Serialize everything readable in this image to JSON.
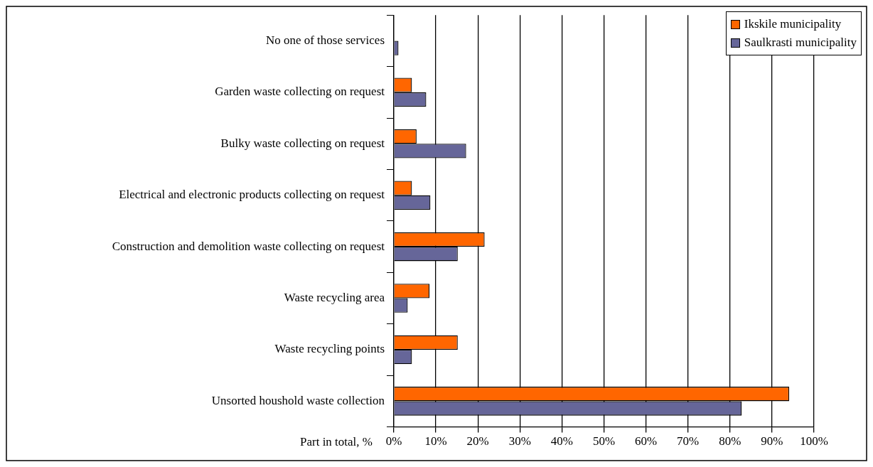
{
  "chart_data": {
    "type": "bar",
    "orientation": "horizontal",
    "xlabel": "Part in total, %",
    "categories": [
      "No one of those services",
      "Garden waste collecting on request",
      "Bulky waste collecting on request",
      "Electrical and electronic products collecting on request",
      "Construction and demolition waste collecting on request",
      "Waste recycling area",
      "Waste recycling points",
      "Unsorted houshold waste collection"
    ],
    "series": [
      {
        "name": "Ikskile municipality",
        "color": "#ff6600",
        "values": [
          null,
          4.3,
          5.4,
          4.3,
          21.6,
          8.5,
          15.2,
          94.1
        ]
      },
      {
        "name": "Saulkrasti municipality",
        "color": "#666699",
        "values": [
          1.1,
          7.7,
          17.2,
          8.7,
          15.2,
          3.3,
          4.3,
          82.8
        ]
      }
    ],
    "xlim": [
      0,
      100
    ],
    "xticks": [
      {
        "value": 0,
        "label": "0%"
      },
      {
        "value": 10,
        "label": "10%"
      },
      {
        "value": 20,
        "label": "20%"
      },
      {
        "value": 30,
        "label": "30%"
      },
      {
        "value": 40,
        "label": "40%"
      },
      {
        "value": 50,
        "label": "50%"
      },
      {
        "value": 60,
        "label": "60%"
      },
      {
        "value": 70,
        "label": "70%"
      },
      {
        "value": 80,
        "label": "80%"
      },
      {
        "value": 90,
        "label": "90%"
      },
      {
        "value": 100,
        "label": "100%"
      }
    ],
    "grid": "x",
    "legend": "top right"
  }
}
